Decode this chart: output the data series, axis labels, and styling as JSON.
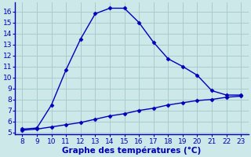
{
  "x_upper": [
    8,
    9,
    10,
    11,
    12,
    13,
    14,
    15,
    16,
    17,
    18,
    19,
    20,
    21,
    22,
    23
  ],
  "y_upper": [
    5.3,
    5.4,
    7.5,
    10.7,
    13.5,
    15.8,
    16.3,
    16.3,
    15.0,
    13.2,
    11.7,
    11.0,
    10.2,
    8.8,
    8.4,
    8.4
  ],
  "x_lower": [
    8,
    9,
    10,
    11,
    12,
    13,
    14,
    15,
    16,
    17,
    18,
    19,
    20,
    21,
    22,
    23
  ],
  "y_lower": [
    5.2,
    5.3,
    5.5,
    5.7,
    5.9,
    6.2,
    6.5,
    6.7,
    7.0,
    7.2,
    7.5,
    7.7,
    7.9,
    8.0,
    8.2,
    8.3
  ],
  "line_color": "#0000bb",
  "bg_color": "#cce8e8",
  "grid_color": "#aacccc",
  "xlabel": "Graphe des températures (°C)",
  "xlim": [
    7.5,
    23.5
  ],
  "ylim": [
    4.8,
    16.8
  ],
  "yticks": [
    5,
    6,
    7,
    8,
    9,
    10,
    11,
    12,
    13,
    14,
    15,
    16
  ],
  "xticks": [
    8,
    9,
    10,
    11,
    12,
    13,
    14,
    15,
    16,
    17,
    18,
    19,
    20,
    21,
    22,
    23
  ],
  "marker": "D",
  "markersize": 2.5,
  "linewidth": 1.0,
  "tick_fontsize": 6.5,
  "xlabel_fontsize": 7.5
}
